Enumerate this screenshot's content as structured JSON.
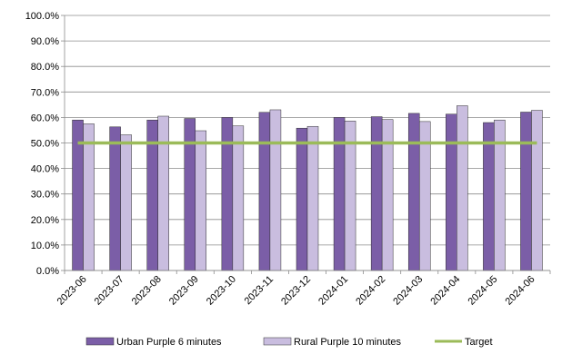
{
  "chart_data": {
    "type": "bar",
    "categories": [
      "2023-06",
      "2023-07",
      "2023-08",
      "2023-09",
      "2023-10",
      "2023-11",
      "2023-12",
      "2024-01",
      "2024-02",
      "2024-03",
      "2024-04",
      "2024-05",
      "2024-06"
    ],
    "series": [
      {
        "name": "Urban Purple 6 minutes",
        "values": [
          59.0,
          56.3,
          59.0,
          59.6,
          60.0,
          62.0,
          55.8,
          60.0,
          60.3,
          61.6,
          61.3,
          58.0,
          62.1
        ],
        "color": "#7b5ea7"
      },
      {
        "name": "Rural Purple 10 minutes",
        "values": [
          57.5,
          53.2,
          60.5,
          54.8,
          56.7,
          63.0,
          56.5,
          58.6,
          59.2,
          58.4,
          64.6,
          59.0,
          62.8
        ],
        "color": "#c9bddf"
      }
    ],
    "target": {
      "name": "Target",
      "value": 50.0,
      "color": "#9bbb59"
    },
    "ylim": [
      0,
      100
    ],
    "yticks": [
      "0.0%",
      "10.0%",
      "20.0%",
      "30.0%",
      "40.0%",
      "50.0%",
      "60.0%",
      "70.0%",
      "80.0%",
      "90.0%",
      "100.0%"
    ],
    "title": "",
    "xlabel": "",
    "ylabel": "",
    "grid": true,
    "legend_position": "bottom"
  }
}
